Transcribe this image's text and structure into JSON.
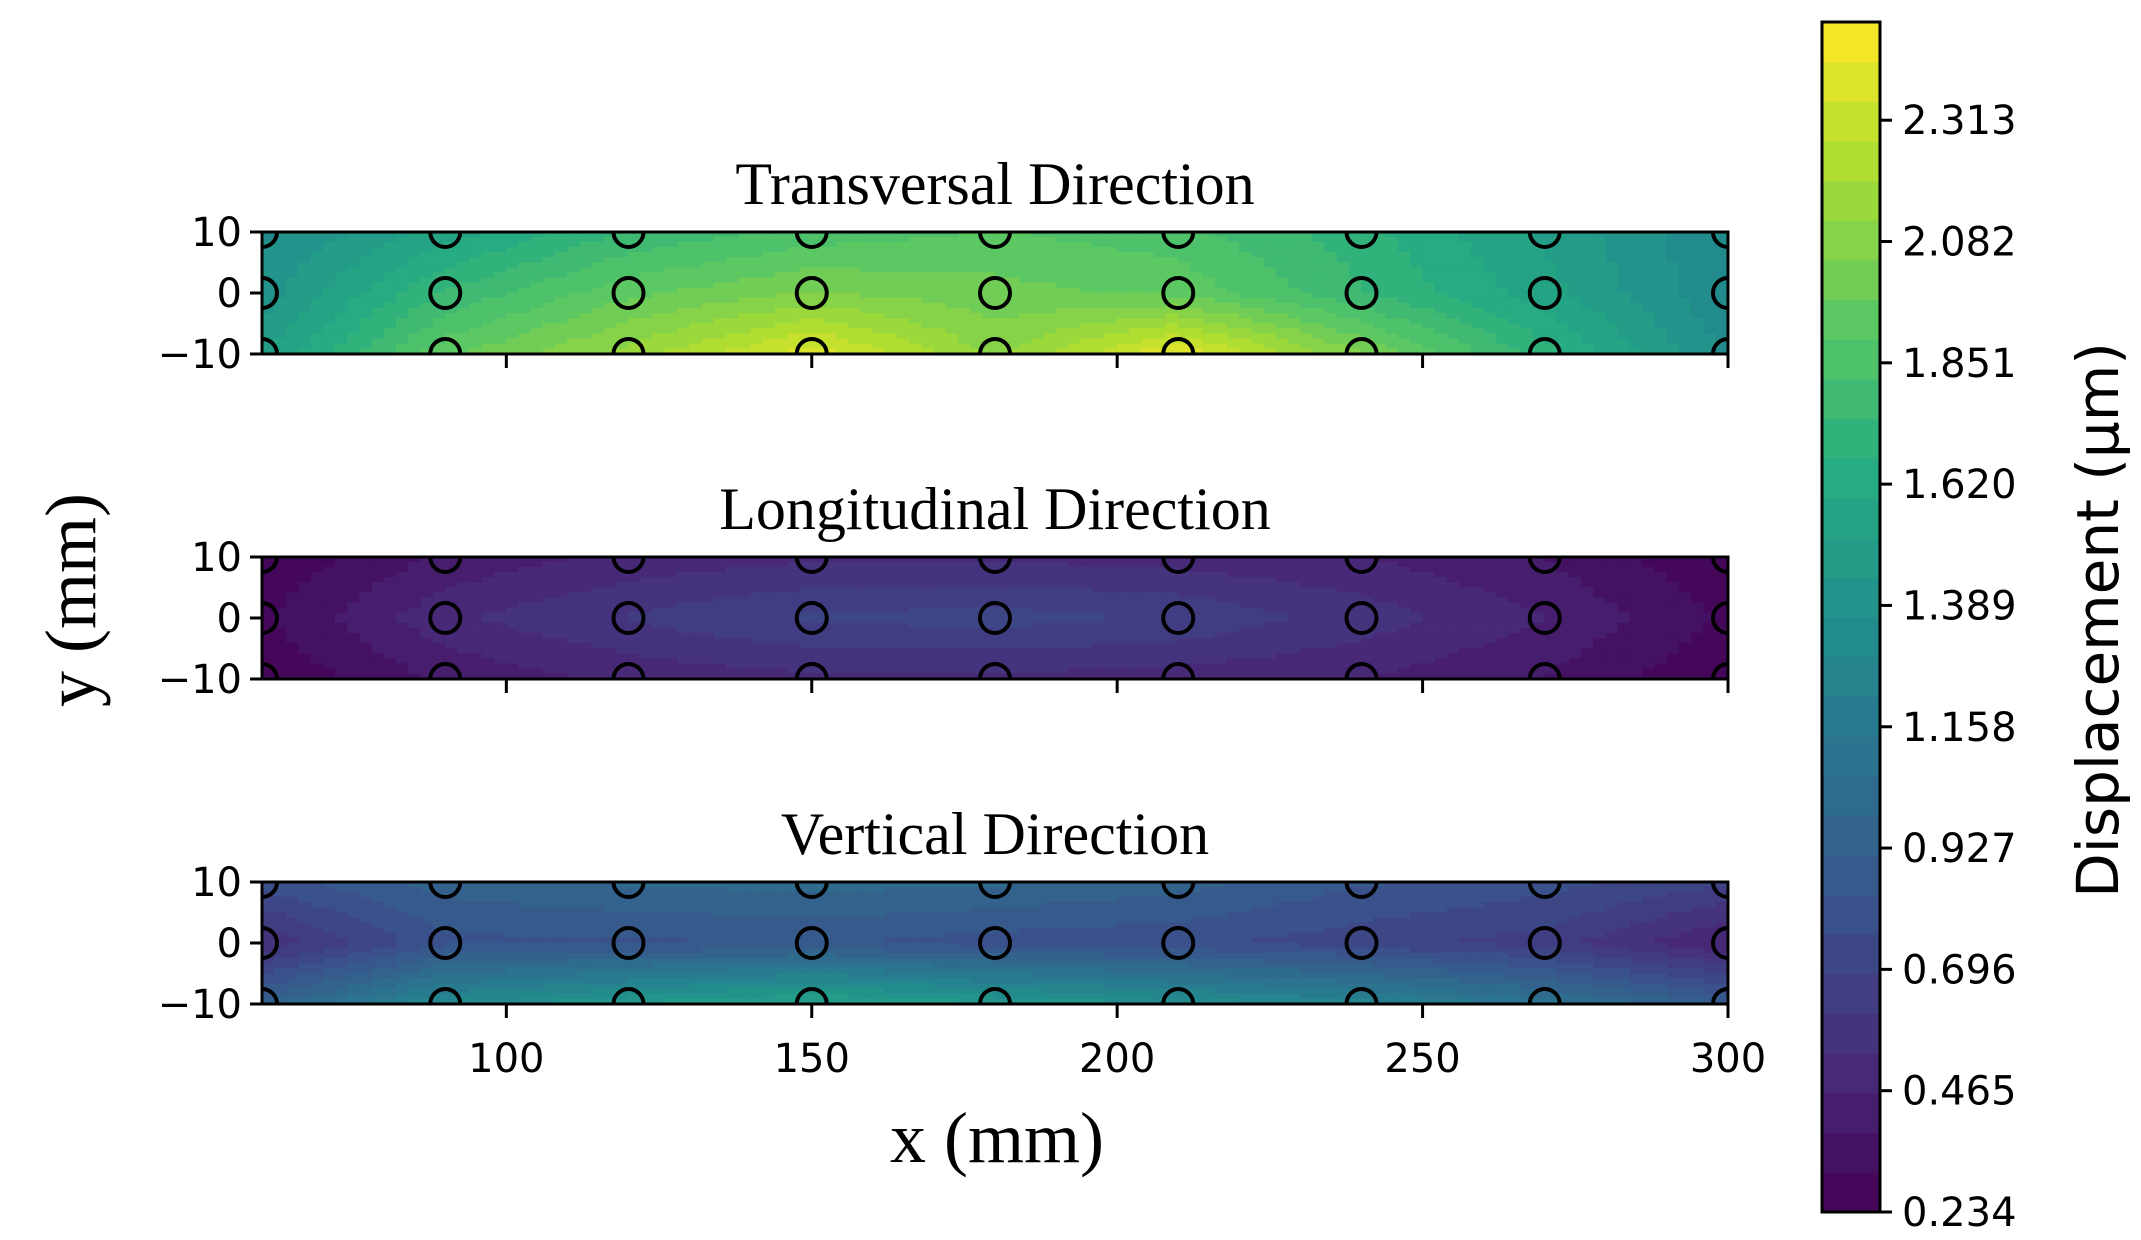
{
  "chart_data": {
    "type": "heatmap",
    "colormap": "viridis",
    "xlabel": "x (mm)",
    "ylabel": "y (mm)",
    "xlim": [
      60,
      300
    ],
    "ylim": [
      -10,
      10
    ],
    "x_ticks": [
      100,
      150,
      200,
      250,
      300
    ],
    "y_ticks": [
      10,
      0,
      -10
    ],
    "x_tick_labels": [
      "100",
      "150",
      "200",
      "250",
      "300"
    ],
    "y_tick_labels": [
      "10",
      "0",
      "−10"
    ],
    "sensor_x": [
      60,
      90,
      120,
      150,
      180,
      210,
      240,
      270,
      300
    ],
    "sensor_y": [
      10,
      0,
      -10
    ],
    "colorbar": {
      "label": "Displacement (μm)",
      "min": 0.234,
      "max": 2.5,
      "ticks": [
        0.234,
        0.465,
        0.696,
        0.927,
        1.158,
        1.389,
        1.62,
        1.851,
        2.082,
        2.313
      ],
      "tick_labels": [
        "0.234",
        "0.465",
        "0.696",
        "0.927",
        "1.158",
        "1.389",
        "1.620",
        "1.851",
        "2.082",
        "2.313"
      ]
    },
    "panels": [
      {
        "title": "Transversal Direction",
        "rows_y": [
          10,
          0,
          -10
        ],
        "values": [
          [
            1.35,
            1.55,
            1.75,
            1.85,
            1.9,
            1.85,
            1.7,
            1.5,
            1.3
          ],
          [
            1.4,
            1.75,
            1.95,
            2.05,
            2.0,
            1.95,
            1.75,
            1.55,
            1.3
          ],
          [
            1.5,
            1.95,
            2.15,
            2.4,
            2.1,
            2.42,
            2.05,
            1.7,
            1.35
          ]
        ]
      },
      {
        "title": "Longitudinal Direction",
        "rows_y": [
          10,
          0,
          -10
        ],
        "values": [
          [
            0.24,
            0.4,
            0.48,
            0.52,
            0.52,
            0.5,
            0.46,
            0.38,
            0.24
          ],
          [
            0.3,
            0.52,
            0.62,
            0.7,
            0.72,
            0.68,
            0.58,
            0.46,
            0.3
          ],
          [
            0.24,
            0.4,
            0.48,
            0.52,
            0.52,
            0.5,
            0.46,
            0.38,
            0.24
          ]
        ]
      },
      {
        "title": "Vertical Direction",
        "rows_y": [
          10,
          0,
          -10
        ],
        "values": [
          [
            0.8,
            0.95,
            1.0,
            1.02,
            1.0,
            0.95,
            0.85,
            0.8,
            0.7
          ],
          [
            0.55,
            0.82,
            0.82,
            0.85,
            0.8,
            0.78,
            0.72,
            0.65,
            0.45
          ],
          [
            0.95,
            1.3,
            1.45,
            1.55,
            1.45,
            1.35,
            1.25,
            1.1,
            0.9
          ]
        ]
      }
    ]
  }
}
